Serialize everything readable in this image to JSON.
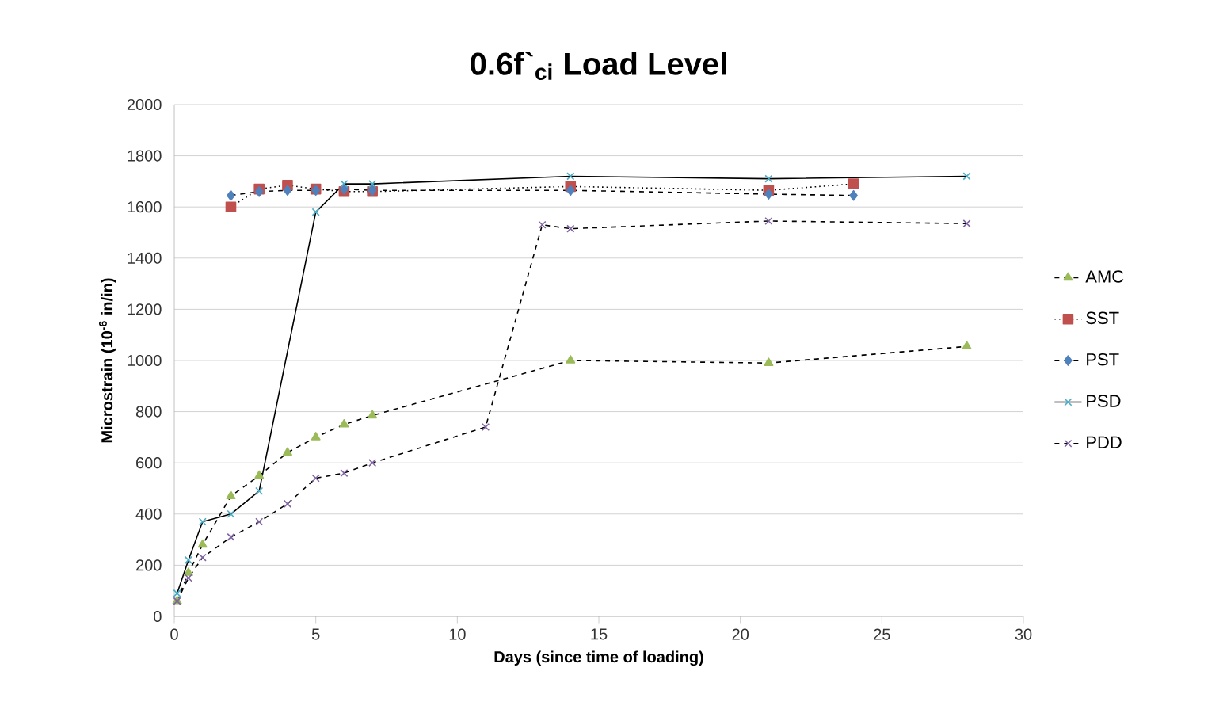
{
  "chart_data": {
    "type": "line",
    "title": "0.6f`$_{ci}$ Load Level",
    "xlabel": "Days (since time of loading)",
    "ylabel": "Microstrain (10$^{-6}$ in/in)",
    "xlim": [
      0,
      30
    ],
    "xticks": [
      0,
      5,
      10,
      15,
      20,
      25,
      30
    ],
    "ylim": [
      0,
      2000
    ],
    "yticks": [
      0,
      200,
      400,
      600,
      800,
      1000,
      1200,
      1400,
      1600,
      1800,
      2000
    ],
    "grid": "y",
    "legend": "right",
    "series": [
      {
        "name": "AMC",
        "color": "#9bbb59",
        "marker": "triangle",
        "line_style": "dashed",
        "x": [
          0.1,
          0.5,
          1,
          2,
          3,
          4,
          5,
          6,
          7,
          14,
          21,
          28
        ],
        "values": [
          60,
          170,
          280,
          470,
          550,
          640,
          700,
          750,
          785,
          1000,
          990,
          1055
        ]
      },
      {
        "name": "SST",
        "color": "#c0504d",
        "marker": "square",
        "line_style": "dotted",
        "x": [
          2,
          3,
          4,
          5,
          6,
          7,
          14,
          21,
          24
        ],
        "values": [
          1600,
          1670,
          1685,
          1670,
          1660,
          1660,
          1680,
          1665,
          1690
        ]
      },
      {
        "name": "PST",
        "color": "#4f81bd",
        "marker": "diamond",
        "line_style": "dashed",
        "x": [
          2,
          3,
          4,
          5,
          6,
          7,
          14,
          21,
          24
        ],
        "values": [
          1645,
          1660,
          1665,
          1665,
          1670,
          1665,
          1665,
          1650,
          1645
        ]
      },
      {
        "name": "PSD",
        "color": "#4bacc6",
        "marker": "cross",
        "line_style": "solid",
        "x": [
          0.1,
          0.5,
          1,
          2,
          3,
          5,
          6,
          7,
          14,
          21,
          28
        ],
        "values": [
          90,
          220,
          370,
          400,
          490,
          1580,
          1690,
          1690,
          1720,
          1710,
          1720
        ]
      },
      {
        "name": "PDD",
        "color": "#8064a2",
        "marker": "cross",
        "line_style": "dashed",
        "x": [
          0.1,
          0.5,
          1,
          2,
          3,
          4,
          5,
          6,
          7,
          11,
          13,
          14,
          21,
          28
        ],
        "values": [
          60,
          150,
          230,
          310,
          370,
          440,
          540,
          560,
          600,
          740,
          1530,
          1515,
          1545,
          1535
        ]
      }
    ]
  }
}
